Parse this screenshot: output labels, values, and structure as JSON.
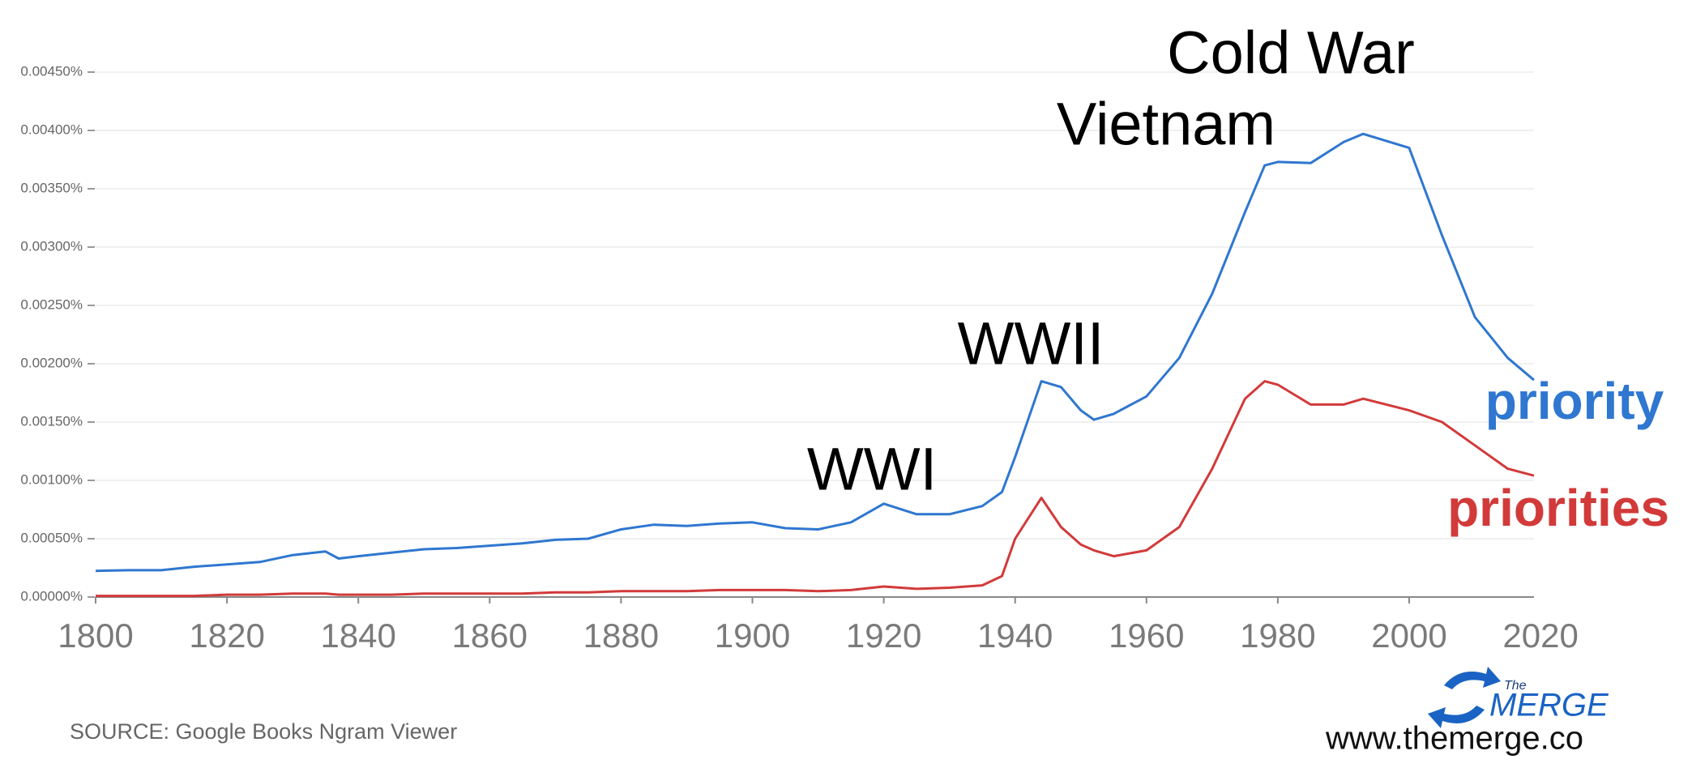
{
  "chart_data": {
    "type": "line",
    "annotations": [
      "Cold War",
      "Vietnam",
      "WWII",
      "WWI"
    ],
    "source": "SOURCE: Google Books Ngram Viewer",
    "website": "www.themerge.co",
    "logo": {
      "small": "The",
      "main": "MERGE"
    },
    "x": [
      1800,
      1805,
      1810,
      1815,
      1820,
      1825,
      1830,
      1835,
      1837,
      1840,
      1845,
      1850,
      1855,
      1860,
      1865,
      1870,
      1875,
      1880,
      1885,
      1890,
      1895,
      1900,
      1905,
      1910,
      1915,
      1920,
      1925,
      1930,
      1935,
      1938,
      1940,
      1944,
      1947,
      1950,
      1952,
      1955,
      1960,
      1965,
      1970,
      1975,
      1978,
      1980,
      1985,
      1990,
      1993,
      2000,
      2005,
      2010,
      2015,
      2019
    ],
    "series": [
      {
        "name": "priority",
        "color": "#2f77d0",
        "values": [
          0.000224,
          0.00023,
          0.00023,
          0.00026,
          0.00028,
          0.0003,
          0.00036,
          0.00039,
          0.00033,
          0.00035,
          0.00038,
          0.00041,
          0.00042,
          0.00044,
          0.00046,
          0.00049,
          0.0005,
          0.00058,
          0.00062,
          0.00061,
          0.00063,
          0.00064,
          0.00059,
          0.00058,
          0.00064,
          0.0008,
          0.00071,
          0.00071,
          0.00078,
          0.0009,
          0.0012,
          0.00185,
          0.0018,
          0.0016,
          0.00152,
          0.00157,
          0.00172,
          0.00205,
          0.0026,
          0.0033,
          0.0037,
          0.00373,
          0.00372,
          0.0039,
          0.00397,
          0.00385,
          0.0031,
          0.0024,
          0.00205,
          0.00186
        ]
      },
      {
        "name": "priorities",
        "color": "#d23a3a",
        "values": [
          1e-05,
          1e-05,
          1e-05,
          1e-05,
          2e-05,
          2e-05,
          3e-05,
          3e-05,
          2e-05,
          2e-05,
          2e-05,
          3e-05,
          3e-05,
          3e-05,
          3e-05,
          4e-05,
          4e-05,
          5e-05,
          5e-05,
          5e-05,
          6e-05,
          6e-05,
          6e-05,
          5e-05,
          6e-05,
          9e-05,
          7e-05,
          8e-05,
          0.0001,
          0.00018,
          0.0005,
          0.00085,
          0.0006,
          0.00045,
          0.0004,
          0.00035,
          0.0004,
          0.0006,
          0.0011,
          0.0017,
          0.00185,
          0.00182,
          0.00165,
          0.00165,
          0.0017,
          0.0016,
          0.0015,
          0.0013,
          0.0011,
          0.00104
        ]
      }
    ],
    "xlim": [
      1800,
      2019
    ],
    "xticks": [
      1800,
      1820,
      1840,
      1860,
      1880,
      1900,
      1920,
      1940,
      1960,
      1980,
      2000,
      2020
    ],
    "ylim": [
      0,
      0.0045
    ],
    "yticks": [
      {
        "value": 0,
        "label": "0.00000%"
      },
      {
        "value": 0.0005,
        "label": "0.00050%"
      },
      {
        "value": 0.001,
        "label": "0.00100%"
      },
      {
        "value": 0.0015,
        "label": "0.00150%"
      },
      {
        "value": 0.002,
        "label": "0.00200%"
      },
      {
        "value": 0.0025,
        "label": "0.00250%"
      },
      {
        "value": 0.003,
        "label": "0.00300%"
      },
      {
        "value": 0.0035,
        "label": "0.00350%"
      },
      {
        "value": 0.004,
        "label": "0.00400%"
      },
      {
        "value": 0.0045,
        "label": "0.00450%"
      }
    ],
    "grid": true
  }
}
